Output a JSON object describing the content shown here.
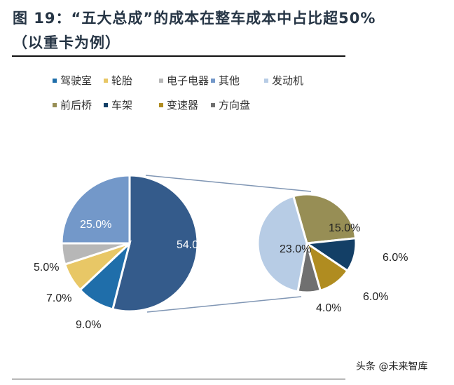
{
  "title_line1": "图 19：“五大总成”的成本在整车成本中占比超50%",
  "title_line2": "（以重卡为例）",
  "watermark": "头条 @未来智库",
  "chart_data": {
    "type": "pie",
    "subtype": "pie-of-pie",
    "title": "“五大总成”的成本在整车成本中占比超50%（以重卡为例）",
    "legend_placement": "top",
    "main_pie": [
      {
        "name": "五大总成",
        "value": 54.0,
        "label": "54.0%",
        "color": "#345b8b"
      },
      {
        "name": "驾驶室",
        "value": 9.0,
        "label": "9.0%",
        "color": "#1f6eaa"
      },
      {
        "name": "轮胎",
        "value": 7.0,
        "label": "7.0%",
        "color": "#e8c766"
      },
      {
        "name": "电子电器",
        "value": 5.0,
        "label": "5.0%",
        "color": "#b7b7b7"
      },
      {
        "name": "其他",
        "value": 25.0,
        "label": "25.0%",
        "color": "#7398c9"
      }
    ],
    "sub_pie": [
      {
        "name": "前后桥",
        "value": 15.0,
        "label": "15.0%",
        "color": "#978e55"
      },
      {
        "name": "车架",
        "value": 6.0,
        "label": "6.0%",
        "color": "#133f66"
      },
      {
        "name": "变速器",
        "value": 6.0,
        "label": "6.0%",
        "color": "#b08c20"
      },
      {
        "name": "方向盘",
        "value": 4.0,
        "label": "4.0%",
        "color": "#707070"
      },
      {
        "name": "发动机",
        "value": 23.0,
        "label": "23.0%",
        "color": "#b7cce5"
      }
    ],
    "legend": [
      {
        "name": "驾驶室",
        "color": "#1f6eaa"
      },
      {
        "name": "轮胎",
        "color": "#e8c766"
      },
      {
        "name": "电子电器",
        "color": "#b7b7b7"
      },
      {
        "name": "其他",
        "color": "#7398c9"
      },
      {
        "name": "发动机",
        "color": "#b7cce5"
      },
      {
        "name": "前后桥",
        "color": "#978e55"
      },
      {
        "name": "车架",
        "color": "#133f66"
      },
      {
        "name": "变速器",
        "color": "#b08c20"
      },
      {
        "name": "方向盘",
        "color": "#707070"
      }
    ]
  }
}
